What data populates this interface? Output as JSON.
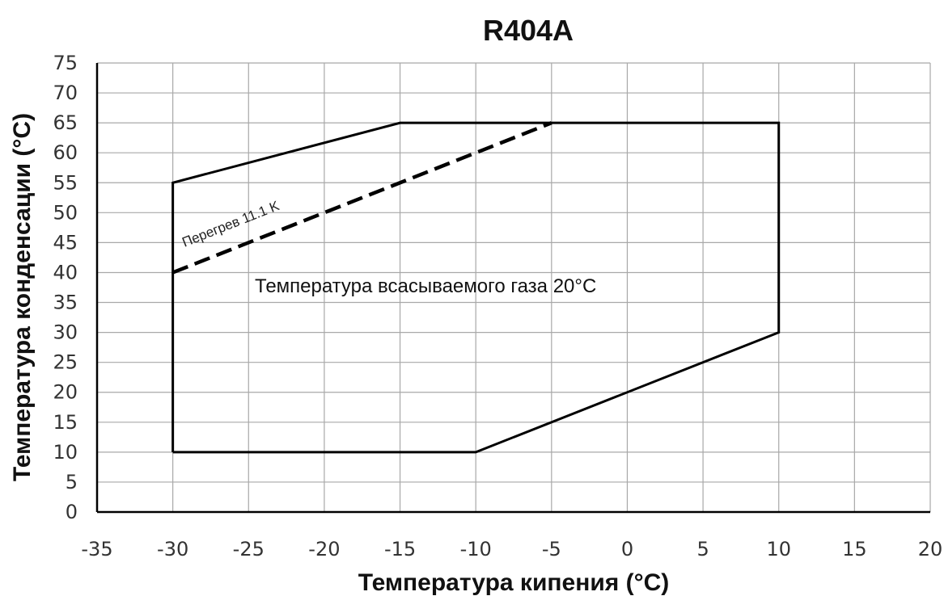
{
  "chart_data": {
    "type": "line",
    "title": "R404A",
    "xlabel": "Температура кипения (°C)",
    "ylabel": "Температура конденсации (°C)",
    "xlim": [
      -35,
      20
    ],
    "ylim": [
      0,
      75
    ],
    "x_ticks": [
      -35,
      -30,
      -25,
      -20,
      -15,
      -10,
      -5,
      0,
      5,
      10,
      15,
      20
    ],
    "y_ticks": [
      0,
      5,
      10,
      15,
      20,
      25,
      30,
      35,
      40,
      45,
      50,
      55,
      60,
      65,
      70,
      75
    ],
    "grid": true,
    "series": [
      {
        "style": "solid",
        "points": [
          [
            -30,
            10
          ],
          [
            -10,
            10
          ],
          [
            10,
            30
          ],
          [
            10,
            65
          ],
          [
            -15,
            65
          ],
          [
            -30,
            55
          ],
          [
            -30,
            10
          ]
        ]
      },
      {
        "style": "dashed",
        "points": [
          [
            -30,
            40
          ],
          [
            -5,
            65
          ]
        ]
      }
    ],
    "annotations": [
      {
        "text": "Температура всасываемого газа 20°C"
      },
      {
        "text": "Перегрев 11.1 K"
      }
    ]
  }
}
